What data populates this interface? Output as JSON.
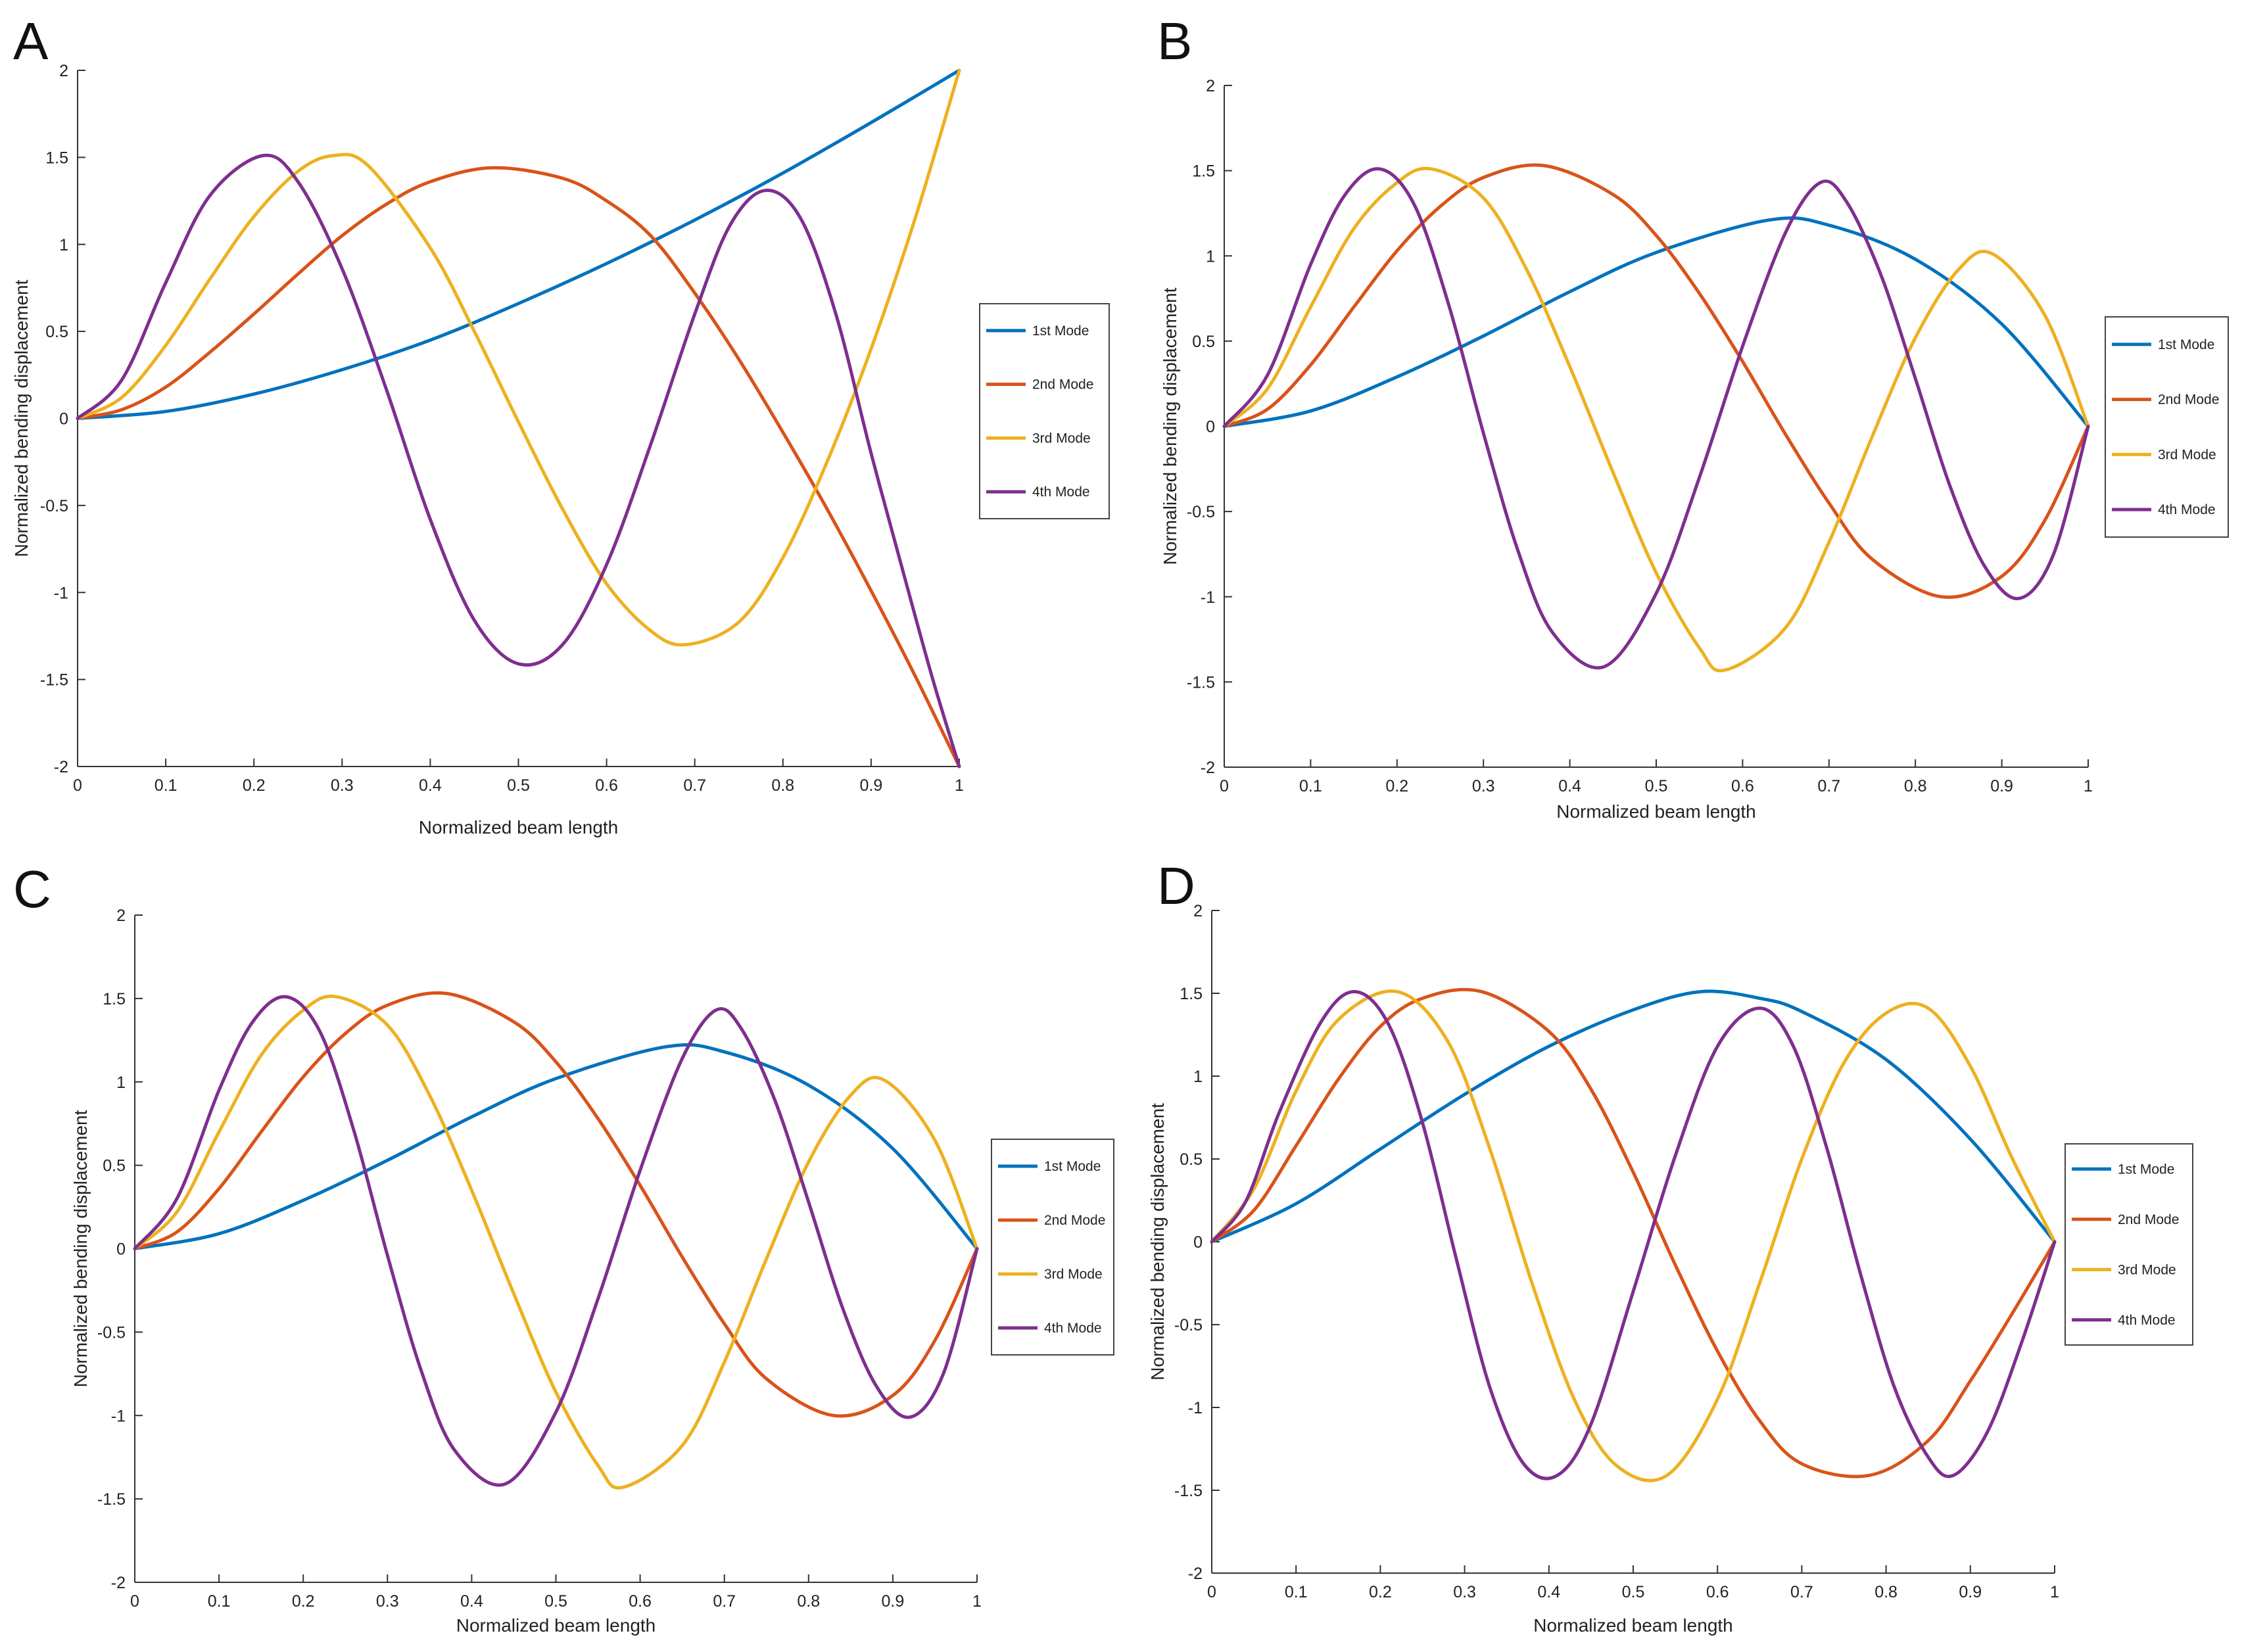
{
  "figure": {
    "series_colors": [
      "#0072BD",
      "#D95319",
      "#EDB120",
      "#7E2F8E"
    ]
  },
  "chart_data": [
    {
      "panel": "A",
      "type": "line",
      "title": "",
      "xlabel": "Normalized beam length",
      "ylabel": "Normalized bending displacement",
      "xlim": [
        0,
        1
      ],
      "ylim": [
        -2,
        2
      ],
      "xticks": [
        "0",
        "0.1",
        "0.2",
        "0.3",
        "0.4",
        "0.5",
        "0.6",
        "0.7",
        "0.8",
        "0.9",
        "1"
      ],
      "yticks": [
        "-2",
        "-1.5",
        "-1",
        "-0.5",
        "0",
        "0.5",
        "1",
        "1.5",
        "2"
      ],
      "legend": [
        "1st Mode",
        "2nd Mode",
        "3rd Mode",
        "4th Mode"
      ],
      "series": [
        {
          "name": "1st Mode",
          "x": [
            0,
            0.1,
            0.2,
            0.3,
            0.4,
            0.5,
            0.6,
            0.7,
            0.8,
            0.9,
            1
          ],
          "y": [
            0,
            0.04,
            0.14,
            0.28,
            0.45,
            0.66,
            0.89,
            1.14,
            1.41,
            1.7,
            2.0
          ]
        },
        {
          "name": "2nd Mode",
          "x": [
            0,
            0.05,
            0.1,
            0.15,
            0.2,
            0.25,
            0.3,
            0.35,
            0.4,
            0.47,
            0.55,
            0.6,
            0.65,
            0.7,
            0.75,
            0.8,
            0.85,
            0.9,
            0.95,
            1
          ],
          "y": [
            0,
            0.05,
            0.18,
            0.38,
            0.6,
            0.83,
            1.05,
            1.23,
            1.36,
            1.44,
            1.38,
            1.25,
            1.05,
            0.72,
            0.34,
            -0.08,
            -0.52,
            -0.99,
            -1.48,
            -2.0
          ]
        },
        {
          "name": "3rd Mode",
          "x": [
            0,
            0.05,
            0.1,
            0.15,
            0.2,
            0.25,
            0.29,
            0.33,
            0.4,
            0.45,
            0.5,
            0.55,
            0.6,
            0.65,
            0.69,
            0.75,
            0.8,
            0.85,
            0.9,
            0.95,
            1
          ],
          "y": [
            0,
            0.12,
            0.42,
            0.8,
            1.16,
            1.42,
            1.51,
            1.45,
            0.98,
            0.5,
            -0.02,
            -0.52,
            -0.95,
            -1.22,
            -1.3,
            -1.17,
            -0.8,
            -0.25,
            0.4,
            1.15,
            2.0
          ]
        },
        {
          "name": "4th Mode",
          "x": [
            0,
            0.05,
            0.1,
            0.15,
            0.21,
            0.25,
            0.3,
            0.35,
            0.4,
            0.45,
            0.5,
            0.55,
            0.6,
            0.65,
            0.7,
            0.74,
            0.78,
            0.82,
            0.86,
            0.9,
            0.94,
            0.97,
            1
          ],
          "y": [
            0,
            0.22,
            0.78,
            1.28,
            1.51,
            1.36,
            0.86,
            0.17,
            -0.58,
            -1.16,
            -1.41,
            -1.3,
            -0.84,
            -0.15,
            0.6,
            1.11,
            1.31,
            1.15,
            0.6,
            -0.2,
            -0.95,
            -1.5,
            -2.0
          ]
        }
      ]
    },
    {
      "panel": "B",
      "type": "line",
      "title": "",
      "xlabel": "Normalized beam length",
      "ylabel": "Normalized bending displacement",
      "xlim": [
        0,
        1
      ],
      "ylim": [
        -2,
        2
      ],
      "xticks": [
        "0",
        "0.1",
        "0.2",
        "0.3",
        "0.4",
        "0.5",
        "0.6",
        "0.7",
        "0.8",
        "0.9",
        "1"
      ],
      "yticks": [
        "-2",
        "-1.5",
        "-1",
        "-0.5",
        "0",
        "0.5",
        "1",
        "1.5",
        "2"
      ],
      "legend": [
        "1st Mode",
        "2nd Mode",
        "3rd Mode",
        "4th Mode"
      ],
      "series": [
        {
          "name": "1st Mode",
          "x": [
            0,
            0.1,
            0.2,
            0.3,
            0.4,
            0.5,
            0.63,
            0.7,
            0.8,
            0.9,
            1
          ],
          "y": [
            0,
            0.09,
            0.29,
            0.53,
            0.79,
            1.02,
            1.21,
            1.18,
            0.98,
            0.6,
            0
          ]
        },
        {
          "name": "2nd Mode",
          "x": [
            0,
            0.05,
            0.1,
            0.15,
            0.2,
            0.25,
            0.3,
            0.37,
            0.45,
            0.5,
            0.55,
            0.6,
            0.65,
            0.7,
            0.75,
            0.83,
            0.9,
            0.95,
            1
          ],
          "y": [
            0,
            0.1,
            0.36,
            0.7,
            1.03,
            1.29,
            1.46,
            1.53,
            1.36,
            1.12,
            0.78,
            0.38,
            -0.05,
            -0.45,
            -0.78,
            -1.0,
            -0.88,
            -0.55,
            0
          ]
        },
        {
          "name": "3rd Mode",
          "x": [
            0,
            0.05,
            0.1,
            0.15,
            0.2,
            0.24,
            0.3,
            0.35,
            0.4,
            0.45,
            0.5,
            0.55,
            0.58,
            0.65,
            0.7,
            0.75,
            0.8,
            0.85,
            0.89,
            0.95,
            1
          ],
          "y": [
            0,
            0.22,
            0.7,
            1.16,
            1.43,
            1.51,
            1.34,
            0.92,
            0.35,
            -0.27,
            -0.86,
            -1.3,
            -1.43,
            -1.18,
            -0.68,
            -0.06,
            0.52,
            0.92,
            1.01,
            0.65,
            0
          ]
        },
        {
          "name": "4th Mode",
          "x": [
            0,
            0.05,
            0.1,
            0.14,
            0.18,
            0.22,
            0.26,
            0.3,
            0.34,
            0.38,
            0.44,
            0.5,
            0.55,
            0.6,
            0.65,
            0.69,
            0.72,
            0.76,
            0.8,
            0.84,
            0.88,
            0.92,
            0.96,
            1
          ],
          "y": [
            0,
            0.3,
            0.95,
            1.36,
            1.51,
            1.3,
            0.71,
            -0.04,
            -0.73,
            -1.21,
            -1.41,
            -0.98,
            -0.3,
            0.47,
            1.14,
            1.43,
            1.32,
            0.89,
            0.28,
            -0.35,
            -0.82,
            -1.01,
            -0.75,
            0
          ]
        }
      ]
    },
    {
      "panel": "C",
      "type": "line",
      "title": "",
      "xlabel": "Normalized beam length",
      "ylabel": "Normalized bending displacement",
      "xlim": [
        0,
        1
      ],
      "ylim": [
        -2,
        2
      ],
      "xticks": [
        "0",
        "0.1",
        "0.2",
        "0.3",
        "0.4",
        "0.5",
        "0.6",
        "0.7",
        "0.8",
        "0.9",
        "1"
      ],
      "yticks": [
        "-2",
        "-1.5",
        "-1",
        "-0.5",
        "0",
        "0.5",
        "1",
        "1.5",
        "2"
      ],
      "legend": [
        "1st Mode",
        "2nd Mode",
        "3rd Mode",
        "4th Mode"
      ],
      "series": [
        {
          "name": "1st Mode",
          "x": [
            0,
            0.1,
            0.2,
            0.3,
            0.4,
            0.5,
            0.63,
            0.7,
            0.8,
            0.9,
            1
          ],
          "y": [
            0,
            0.09,
            0.29,
            0.53,
            0.79,
            1.02,
            1.21,
            1.18,
            0.98,
            0.6,
            0
          ]
        },
        {
          "name": "2nd Mode",
          "x": [
            0,
            0.05,
            0.1,
            0.15,
            0.2,
            0.25,
            0.3,
            0.37,
            0.45,
            0.5,
            0.55,
            0.6,
            0.65,
            0.7,
            0.75,
            0.83,
            0.9,
            0.95,
            1
          ],
          "y": [
            0,
            0.1,
            0.36,
            0.7,
            1.03,
            1.29,
            1.46,
            1.53,
            1.36,
            1.12,
            0.78,
            0.38,
            -0.05,
            -0.45,
            -0.78,
            -1.0,
            -0.88,
            -0.55,
            0
          ]
        },
        {
          "name": "3rd Mode",
          "x": [
            0,
            0.05,
            0.1,
            0.15,
            0.2,
            0.24,
            0.3,
            0.35,
            0.4,
            0.45,
            0.5,
            0.55,
            0.58,
            0.65,
            0.7,
            0.75,
            0.8,
            0.85,
            0.89,
            0.95,
            1
          ],
          "y": [
            0,
            0.22,
            0.7,
            1.16,
            1.43,
            1.51,
            1.34,
            0.92,
            0.35,
            -0.27,
            -0.86,
            -1.3,
            -1.43,
            -1.18,
            -0.68,
            -0.06,
            0.52,
            0.92,
            1.01,
            0.65,
            0
          ]
        },
        {
          "name": "4th Mode",
          "x": [
            0,
            0.05,
            0.1,
            0.14,
            0.18,
            0.22,
            0.26,
            0.3,
            0.34,
            0.38,
            0.44,
            0.5,
            0.55,
            0.6,
            0.65,
            0.69,
            0.72,
            0.76,
            0.8,
            0.84,
            0.88,
            0.92,
            0.96,
            1
          ],
          "y": [
            0,
            0.3,
            0.95,
            1.36,
            1.51,
            1.3,
            0.71,
            -0.04,
            -0.73,
            -1.21,
            -1.41,
            -0.98,
            -0.3,
            0.47,
            1.14,
            1.43,
            1.32,
            0.89,
            0.28,
            -0.35,
            -0.82,
            -1.01,
            -0.75,
            0
          ]
        }
      ]
    },
    {
      "panel": "D",
      "type": "line",
      "title": "",
      "xlabel": "Normalized beam length",
      "ylabel": "Normalized bending displacement",
      "xlim": [
        0,
        1
      ],
      "ylim": [
        -2,
        2
      ],
      "xticks": [
        "0",
        "0.1",
        "0.2",
        "0.3",
        "0.4",
        "0.5",
        "0.6",
        "0.7",
        "0.8",
        "0.9",
        "1"
      ],
      "yticks": [
        "-2",
        "-1.5",
        "-1",
        "-0.5",
        "0",
        "0.5",
        "1",
        "1.5",
        "2"
      ],
      "legend": [
        "1st Mode",
        "2nd Mode",
        "3rd Mode",
        "4th Mode"
      ],
      "series": [
        {
          "name": "1st Mode",
          "x": [
            0,
            0.1,
            0.2,
            0.3,
            0.4,
            0.5,
            0.58,
            0.65,
            0.7,
            0.8,
            0.9,
            1
          ],
          "y": [
            0,
            0.23,
            0.56,
            0.89,
            1.18,
            1.4,
            1.51,
            1.47,
            1.39,
            1.1,
            0.62,
            0
          ]
        },
        {
          "name": "2nd Mode",
          "x": [
            0,
            0.05,
            0.1,
            0.15,
            0.2,
            0.25,
            0.32,
            0.4,
            0.45,
            0.5,
            0.55,
            0.6,
            0.65,
            0.7,
            0.78,
            0.85,
            0.9,
            0.95,
            1
          ],
          "y": [
            0,
            0.19,
            0.58,
            0.98,
            1.3,
            1.47,
            1.51,
            1.27,
            0.92,
            0.42,
            -0.14,
            -0.66,
            -1.08,
            -1.34,
            -1.41,
            -1.2,
            -0.84,
            -0.43,
            0
          ]
        },
        {
          "name": "3rd Mode",
          "x": [
            0,
            0.05,
            0.1,
            0.15,
            0.22,
            0.28,
            0.33,
            0.38,
            0.43,
            0.48,
            0.54,
            0.6,
            0.65,
            0.7,
            0.75,
            0.8,
            0.85,
            0.9,
            0.95,
            1
          ],
          "y": [
            0,
            0.32,
            0.91,
            1.34,
            1.51,
            1.21,
            0.56,
            -0.25,
            -0.95,
            -1.35,
            -1.41,
            -0.95,
            -0.25,
            0.5,
            1.08,
            1.38,
            1.41,
            1.06,
            0.5,
            0
          ]
        },
        {
          "name": "4th Mode",
          "x": [
            0,
            0.04,
            0.08,
            0.13,
            0.17,
            0.21,
            0.25,
            0.29,
            0.33,
            0.37,
            0.41,
            0.45,
            0.5,
            0.55,
            0.6,
            0.65,
            0.69,
            0.73,
            0.77,
            0.81,
            0.85,
            0.88,
            0.92,
            0.96,
            1
          ],
          "y": [
            0,
            0.24,
            0.78,
            1.33,
            1.51,
            1.31,
            0.72,
            -0.1,
            -0.88,
            -1.34,
            -1.41,
            -1.1,
            -0.3,
            0.52,
            1.18,
            1.41,
            1.18,
            0.56,
            -0.2,
            -0.88,
            -1.3,
            -1.41,
            -1.15,
            -0.62,
            0
          ]
        }
      ]
    }
  ]
}
